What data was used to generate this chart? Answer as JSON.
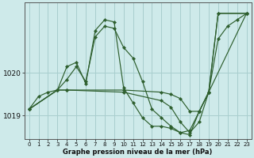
{
  "title": "Graphe pression niveau de la mer (hPa)",
  "background_color": "#ceeaea",
  "grid_color": "#a8cece",
  "line_color": "#2d5e2d",
  "xlim": [
    -0.5,
    23.5
  ],
  "ylim": [
    1018.45,
    1021.65
  ],
  "yticks": [
    1019,
    1020
  ],
  "xticks": [
    0,
    1,
    2,
    3,
    4,
    5,
    6,
    7,
    8,
    9,
    10,
    11,
    12,
    13,
    14,
    15,
    16,
    17,
    18,
    19,
    20,
    21,
    22,
    23
  ],
  "series": [
    {
      "x": [
        0,
        1,
        2,
        3,
        4,
        5,
        6,
        7,
        8,
        9,
        10,
        11,
        12,
        13,
        14,
        15,
        16,
        17,
        18,
        19,
        20,
        21,
        22,
        23
      ],
      "y": [
        1019.15,
        1019.45,
        1019.55,
        1019.6,
        1019.85,
        1020.15,
        1019.8,
        1020.85,
        1021.1,
        1021.05,
        1020.6,
        1020.35,
        1019.8,
        1019.15,
        1018.95,
        1018.75,
        1018.6,
        1018.55,
        1019.1,
        1019.55,
        1020.8,
        1021.1,
        1021.25,
        1021.4
      ]
    },
    {
      "x": [
        0,
        3,
        4,
        5,
        6,
        7,
        8,
        9,
        10,
        11,
        12,
        13,
        14,
        15,
        16,
        17,
        18,
        19,
        20,
        23
      ],
      "y": [
        1019.15,
        1019.6,
        1020.15,
        1020.25,
        1019.75,
        1021.0,
        1021.25,
        1021.2,
        1019.65,
        1019.3,
        1018.95,
        1018.75,
        1018.75,
        1018.7,
        1018.6,
        1018.65,
        1019.1,
        1019.55,
        1021.4,
        1021.4
      ]
    },
    {
      "x": [
        0,
        3,
        4,
        10,
        14,
        15,
        16,
        17,
        18,
        19,
        20,
        23
      ],
      "y": [
        1019.15,
        1019.6,
        1019.6,
        1019.6,
        1019.55,
        1019.5,
        1019.4,
        1019.1,
        1019.1,
        1019.55,
        1021.4,
        1021.4
      ]
    },
    {
      "x": [
        0,
        3,
        4,
        10,
        14,
        15,
        16,
        17,
        18,
        19,
        23
      ],
      "y": [
        1019.15,
        1019.6,
        1019.6,
        1019.55,
        1019.35,
        1019.2,
        1018.85,
        1018.6,
        1018.85,
        1019.55,
        1021.4
      ]
    }
  ]
}
